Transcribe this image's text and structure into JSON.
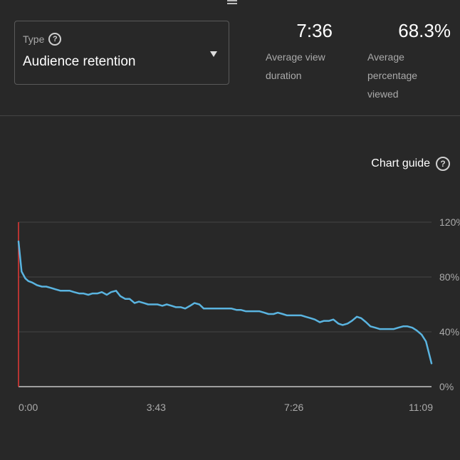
{
  "header": {
    "type_label": "Type",
    "type_value": "Audience retention",
    "metrics": [
      {
        "value": "7:36",
        "label": "Average view duration"
      },
      {
        "value": "68.3%",
        "label": "Average percentage viewed"
      }
    ]
  },
  "chart_guide": {
    "label": "Chart guide"
  },
  "colors": {
    "line": "#5ab4e0",
    "playhead": "#e53935",
    "grid": "#444444",
    "axis": "#9e9e9e"
  },
  "icons": {
    "help": "question-circle-icon",
    "dropdown": "triangle-down-icon",
    "handle": "drag-handle-icon"
  },
  "chart_data": {
    "type": "line",
    "title": "",
    "xlabel": "",
    "ylabel": "",
    "x_ticks": [
      "0:00",
      "3:43",
      "7:26",
      "11:09"
    ],
    "y_ticks": [
      "120%",
      "80%",
      "40%",
      "0%"
    ],
    "ylim": [
      0,
      120
    ],
    "xlim": [
      0,
      669
    ],
    "grid": true,
    "series": [
      {
        "x": [
          0,
          5,
          11,
          16,
          22,
          30,
          38,
          45,
          53,
          60,
          68,
          75,
          83,
          90,
          98,
          105,
          113,
          120,
          128,
          135,
          143,
          150,
          158,
          165,
          173,
          180,
          188,
          195,
          203,
          210,
          218,
          225,
          233,
          240,
          248,
          255,
          263,
          270,
          278,
          285,
          293,
          300,
          308,
          315,
          323,
          330,
          338,
          345,
          353,
          360,
          368,
          375,
          383,
          390,
          398,
          405,
          413,
          420,
          428,
          435,
          443,
          450,
          458,
          465,
          473,
          480,
          488,
          495,
          503,
          510,
          518,
          525,
          533,
          540,
          548,
          555,
          563,
          570,
          578,
          585,
          593,
          600,
          608,
          615,
          623,
          630,
          638,
          645,
          653,
          660,
          669
        ],
        "values": [
          106,
          84,
          79,
          77,
          76,
          74,
          73,
          73,
          72,
          71,
          70,
          70,
          70,
          69,
          68,
          68,
          67,
          68,
          68,
          69,
          67,
          69,
          70,
          66,
          64,
          64,
          61,
          62,
          61,
          60,
          60,
          60,
          59,
          60,
          59,
          58,
          58,
          57,
          59,
          61,
          60,
          57,
          57,
          57,
          57,
          57,
          57,
          57,
          56,
          56,
          55,
          55,
          55,
          55,
          54,
          53,
          53,
          54,
          53,
          52,
          52,
          52,
          52,
          51,
          50,
          49,
          47,
          48,
          48,
          49,
          46,
          45,
          46,
          48,
          51,
          50,
          47,
          44,
          43,
          42,
          42,
          42,
          42,
          43,
          44,
          44,
          43,
          41,
          38,
          33,
          17
        ]
      }
    ]
  }
}
